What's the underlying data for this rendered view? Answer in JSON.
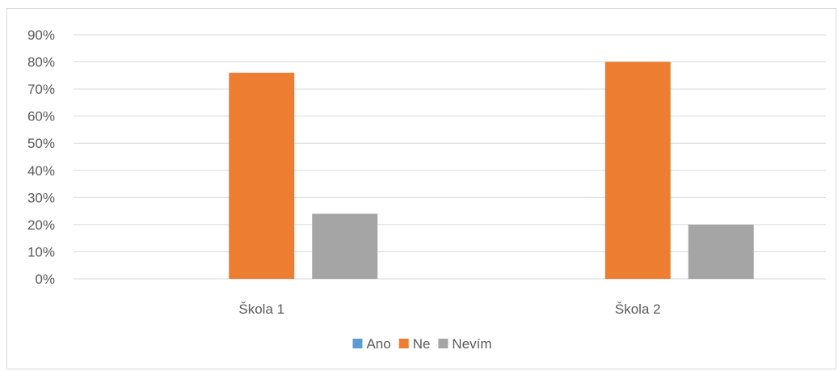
{
  "chart_data": {
    "type": "bar",
    "title": "",
    "xlabel": "",
    "ylabel": "",
    "categories": [
      "Škola 1",
      "Škola 2"
    ],
    "series": [
      {
        "name": "Ano",
        "values": [
          0,
          0
        ],
        "color": "#5b9bd5"
      },
      {
        "name": "Ne",
        "values": [
          76,
          80
        ],
        "color": "#ed7d31"
      },
      {
        "name": "Nevím",
        "values": [
          24,
          20
        ],
        "color": "#a5a5a5"
      }
    ],
    "ylim": [
      0,
      90
    ],
    "y_ticks": [
      "0%",
      "10%",
      "20%",
      "30%",
      "40%",
      "50%",
      "60%",
      "70%",
      "80%",
      "90%"
    ],
    "y_tick_values": [
      0,
      10,
      20,
      30,
      40,
      50,
      60,
      70,
      80,
      90
    ],
    "grid": true,
    "legend_position": "bottom",
    "gridline_color": "#d9d9d9"
  }
}
